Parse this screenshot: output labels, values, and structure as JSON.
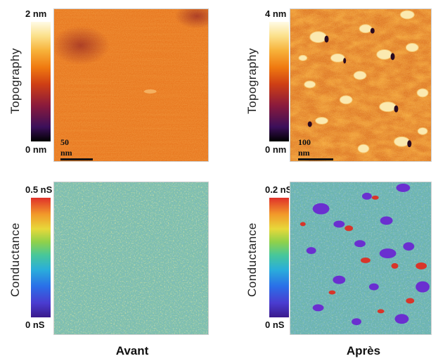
{
  "panels": {
    "top_left": {
      "axis_title": "Topography",
      "tick_top": "2 nm",
      "tick_bottom": "0 nm",
      "scale_bar": "50 nm"
    },
    "top_right": {
      "axis_title": "Topography",
      "tick_top": "4 nm",
      "tick_bottom": "0 nm",
      "scale_bar": "100 nm"
    },
    "bottom_left": {
      "axis_title": "Conductance",
      "tick_top": "0.5 nS",
      "tick_bottom": "0 nS"
    },
    "bottom_right": {
      "axis_title": "Conductance",
      "tick_top": "0.2 nS",
      "tick_bottom": "0 nS"
    }
  },
  "captions": {
    "left": "Avant",
    "right": "Après"
  },
  "colors": {
    "topography_base": "#e8761e",
    "conductance_base": "#7fbfae",
    "particle_topography": "#fbe9b0",
    "particle_conductance_high": "#6a2fd0",
    "particle_conductance_red": "#d8352a"
  }
}
